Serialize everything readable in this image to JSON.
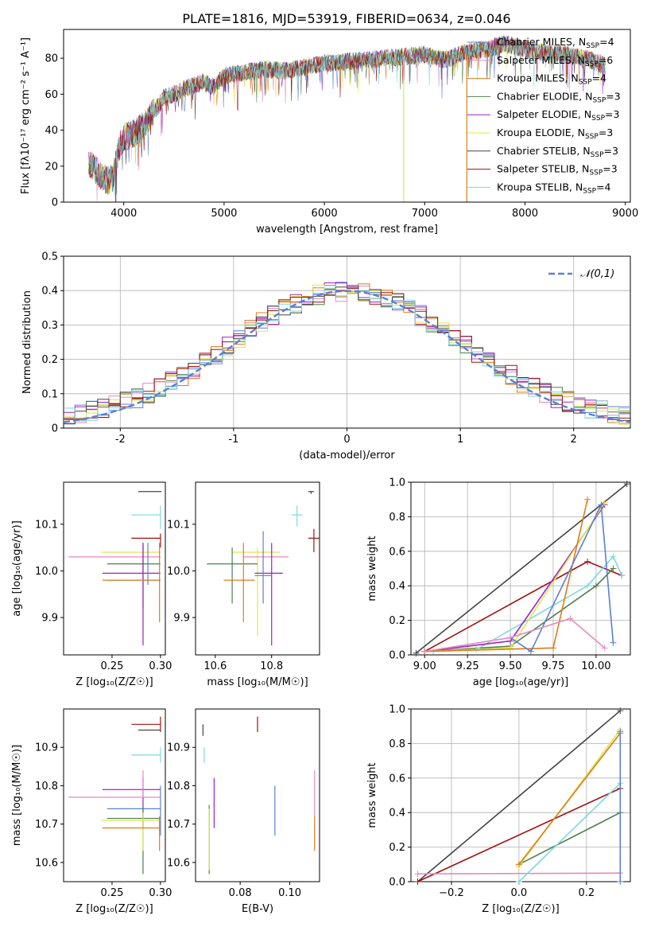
{
  "figure_title": "PLATE=1816, MJD=53919, FIBERID=0634, z=0.046",
  "series": [
    {
      "name": "Chabrier MILES, N",
      "nssp": 4,
      "color": "#5b7fd6"
    },
    {
      "name": "Salpeter MILES, N",
      "nssp": 6,
      "color": "#e28bbd"
    },
    {
      "name": "Kroupa MILES, N",
      "nssp": 4,
      "color": "#e07b1a"
    },
    {
      "name": "Chabrier ELODIE, N",
      "nssp": 3,
      "color": "#4f7f4f"
    },
    {
      "name": "Salpeter ELODIE, N",
      "nssp": 3,
      "color": "#a020c8"
    },
    {
      "name": "Kroupa ELODIE, N",
      "nssp": 3,
      "color": "#d9e84a"
    },
    {
      "name": "Chabrier STELIB, N",
      "nssp": 3,
      "color": "#444444"
    },
    {
      "name": "Salpeter STELIB, N",
      "nssp": 3,
      "color": "#a01010"
    },
    {
      "name": "Kroupa STELIB, N",
      "nssp": 4,
      "color": "#7fd8e0"
    }
  ],
  "chart_data": [
    {
      "id": "spectrum",
      "type": "line",
      "xlabel": "wavelength [Angstrom, rest frame]",
      "ylabel": "Flux [fλ10⁻¹⁷ erg cm⁻² s⁻¹ A⁻¹]",
      "xlim": [
        3400,
        9050
      ],
      "ylim": [
        0,
        96
      ],
      "xticks": [
        4000,
        5000,
        6000,
        7000,
        8000,
        9000
      ],
      "yticks": [
        0,
        20,
        40,
        60,
        80
      ],
      "grid": false,
      "legend": "right",
      "envelope": {
        "x": [
          3650,
          3700,
          3750,
          3800,
          3850,
          3900,
          3950,
          4000,
          4100,
          4200,
          4300,
          4400,
          4500,
          4600,
          4700,
          4800,
          4900,
          5000,
          5200,
          5400,
          5600,
          5800,
          6000,
          6200,
          6400,
          6600,
          6800,
          7000,
          7200,
          7400,
          7600,
          7800,
          8000,
          8200,
          8400,
          8600,
          8800
        ],
        "y": [
          22,
          19,
          16,
          13,
          12,
          14,
          30,
          36,
          38,
          43,
          50,
          58,
          60,
          63,
          65,
          67,
          64,
          70,
          72,
          74,
          73,
          75,
          77,
          78,
          79,
          80,
          81,
          82,
          79,
          83,
          85,
          88,
          85,
          83,
          82,
          80,
          76
        ]
      },
      "drops": [
        3920,
        6790,
        7420
      ]
    },
    {
      "id": "residual-hist",
      "type": "histogram",
      "xlabel": "(data-model)/error",
      "ylabel": "Normed distribution",
      "xlim": [
        -2.5,
        2.5
      ],
      "ylim": [
        0,
        0.5
      ],
      "xticks": [
        -2,
        -1,
        0,
        1,
        2
      ],
      "yticks": [
        0.0,
        0.1,
        0.2,
        0.3,
        0.4,
        0.5
      ],
      "grid": true,
      "legend": "top-right",
      "legend_label": "𝒩(0,1)",
      "bin_width": 0.1,
      "normal_curve": {
        "mean": 0,
        "sigma": 1,
        "color": "#5b7fd6"
      }
    },
    {
      "id": "age-vs-Z",
      "type": "errorbar",
      "xlabel": "Z [log₁₀(Z/Z☉)]",
      "ylabel": "age  [log₁₀(age/yr)]",
      "xlim": [
        0.2,
        0.305
      ],
      "ylim": [
        9.82,
        10.19
      ],
      "xticks": [
        0.25,
        0.3
      ],
      "xticklabels": [
        "0.25",
        "0.30"
      ],
      "yticks": [
        9.9,
        10.0,
        10.1
      ],
      "yticklabels": [
        "9.9",
        "10.0",
        "10.1"
      ],
      "points": [
        {
          "x": 0.301,
          "y": 10.17,
          "xl": 0.277,
          "xh": 0.301,
          "yl": 10.17,
          "yh": 10.17,
          "c": 6
        },
        {
          "x": 0.3,
          "y": 10.12,
          "xl": 0.27,
          "xh": 0.3,
          "yl": 10.09,
          "yh": 10.14,
          "c": 8
        },
        {
          "x": 0.3,
          "y": 10.07,
          "xl": 0.27,
          "xh": 0.3,
          "yl": 10.05,
          "yh": 10.08,
          "c": 7
        },
        {
          "x": 0.282,
          "y": 10.04,
          "xl": 0.239,
          "xh": 0.3,
          "yl": 9.86,
          "yh": 10.05,
          "c": 5
        },
        {
          "x": 0.282,
          "y": 10.03,
          "xl": 0.205,
          "xh": 0.3,
          "yl": 10.03,
          "yh": 10.03,
          "c": 1
        },
        {
          "x": 0.282,
          "y": 10.015,
          "xl": 0.245,
          "xh": 0.3,
          "yl": 9.92,
          "yh": 10.06,
          "c": 3
        },
        {
          "x": 0.282,
          "y": 9.995,
          "xl": 0.24,
          "xh": 0.3,
          "yl": 9.84,
          "yh": 10.06,
          "c": 4
        },
        {
          "x": 0.287,
          "y": 9.98,
          "xl": 0.245,
          "xh": 0.3,
          "yl": 9.97,
          "yh": 10.06,
          "c": 0
        },
        {
          "x": 0.299,
          "y": 9.98,
          "xl": 0.24,
          "xh": 0.299,
          "yl": 9.89,
          "yh": 10.06,
          "c": 2
        }
      ]
    },
    {
      "id": "age-vs-mass",
      "type": "errorbar",
      "xlabel": "mass [log₁₀(M/M☉)]",
      "ylabel": "",
      "xlim": [
        10.53,
        10.97
      ],
      "ylim": [
        9.82,
        10.19
      ],
      "xticks": [
        10.6,
        10.8
      ],
      "xticklabels": [
        "10.6",
        "10.8"
      ],
      "yticks": [
        9.9,
        10.0,
        10.1
      ],
      "yticklabels": [
        "9.9",
        "10.0",
        "10.1"
      ],
      "points": [
        {
          "x": 10.94,
          "y": 10.17,
          "xl": 10.93,
          "xh": 10.95,
          "yl": 10.165,
          "yh": 10.17,
          "c": 6
        },
        {
          "x": 10.89,
          "y": 10.12,
          "xl": 10.87,
          "xh": 10.91,
          "yl": 10.095,
          "yh": 10.14,
          "c": 8
        },
        {
          "x": 10.95,
          "y": 10.07,
          "xl": 10.93,
          "xh": 10.97,
          "yl": 10.04,
          "yh": 10.09,
          "c": 7
        },
        {
          "x": 10.75,
          "y": 10.04,
          "xl": 10.66,
          "xh": 10.83,
          "yl": 9.86,
          "yh": 10.05,
          "c": 5
        },
        {
          "x": 10.78,
          "y": 10.03,
          "xl": 10.7,
          "xh": 10.86,
          "yl": 10.03,
          "yh": 10.03,
          "c": 1
        },
        {
          "x": 10.66,
          "y": 10.015,
          "xl": 10.57,
          "xh": 10.75,
          "yl": 9.93,
          "yh": 10.05,
          "c": 3
        },
        {
          "x": 10.8,
          "y": 9.995,
          "xl": 10.74,
          "xh": 10.84,
          "yl": 9.84,
          "yh": 10.06,
          "c": 4
        },
        {
          "x": 10.77,
          "y": 9.99,
          "xl": 10.74,
          "xh": 10.8,
          "yl": 9.93,
          "yh": 10.085,
          "c": 0
        },
        {
          "x": 10.7,
          "y": 9.98,
          "xl": 10.63,
          "xh": 10.74,
          "yl": 9.89,
          "yh": 10.06,
          "c": 2
        }
      ]
    },
    {
      "id": "weight-vs-age",
      "type": "line",
      "xlabel": "age  [log₁₀(age/yr)]",
      "ylabel": "mass weight",
      "xlim": [
        8.92,
        10.2
      ],
      "ylim": [
        0,
        1.0
      ],
      "xticks": [
        9.0,
        9.25,
        9.5,
        9.75,
        10.0
      ],
      "xticklabels": [
        "9.00",
        "9.25",
        "9.50",
        "9.75",
        "10.00"
      ],
      "yticks": [
        0,
        0.2,
        0.4,
        0.6,
        0.8,
        1.0
      ],
      "yticklabels": [
        "0.0",
        "0.2",
        "0.4",
        "0.6",
        "0.8",
        "1.0"
      ],
      "grid": true,
      "lines": [
        {
          "c": 6,
          "x": [
            8.95,
            10.18
          ],
          "y": [
            0.01,
            0.99
          ]
        },
        {
          "c": 7,
          "x": [
            9.0,
            9.95,
            10.15
          ],
          "y": [
            0.02,
            0.54,
            0.46
          ]
        },
        {
          "c": 3,
          "x": [
            9.0,
            9.5,
            10.0,
            10.1
          ],
          "y": [
            0.02,
            0.05,
            0.4,
            0.5
          ]
        },
        {
          "c": 8,
          "x": [
            9.05,
            9.3,
            9.95,
            10.1,
            10.15
          ],
          "y": [
            0.02,
            0.03,
            0.4,
            0.57,
            0.46
          ]
        },
        {
          "c": 4,
          "x": [
            9.0,
            9.5,
            10.05
          ],
          "y": [
            0.02,
            0.08,
            0.87
          ]
        },
        {
          "c": 5,
          "x": [
            9.0,
            9.5,
            10.05
          ],
          "y": [
            0.02,
            0.04,
            0.88
          ]
        },
        {
          "c": 2,
          "x": [
            9.0,
            9.75,
            9.95
          ],
          "y": [
            0.02,
            0.04,
            0.9
          ]
        },
        {
          "c": 0,
          "x": [
            9.5,
            9.62,
            10.03,
            10.1
          ],
          "y": [
            0.1,
            0.02,
            0.87,
            0.07
          ]
        },
        {
          "c": 1,
          "x": [
            9.0,
            9.5,
            9.85,
            10.05
          ],
          "y": [
            0.02,
            0.1,
            0.21,
            0.04
          ]
        }
      ]
    },
    {
      "id": "mass-vs-Z",
      "type": "errorbar",
      "xlabel": "Z [log₁₀(Z/Z☉)]",
      "ylabel": "mass [log₁₀(M/M☉)]",
      "xlim": [
        0.2,
        0.305
      ],
      "ylim": [
        10.55,
        11.0
      ],
      "xticks": [
        0.25,
        0.3
      ],
      "xticklabels": [
        "0.25",
        "0.30"
      ],
      "yticks": [
        10.6,
        10.7,
        10.8,
        10.9
      ],
      "yticklabels": [
        "10.6",
        "10.7",
        "10.8",
        "10.9"
      ],
      "points": [
        {
          "x": 0.3,
          "y": 10.96,
          "xl": 0.27,
          "xh": 0.3,
          "yl": 10.94,
          "yh": 10.98,
          "c": 7
        },
        {
          "x": 0.3,
          "y": 10.945,
          "xl": 0.277,
          "xh": 0.3,
          "yl": 10.945,
          "yh": 10.945,
          "c": 6
        },
        {
          "x": 0.3,
          "y": 10.88,
          "xl": 0.27,
          "xh": 0.3,
          "yl": 10.86,
          "yh": 10.9,
          "c": 8
        },
        {
          "x": 0.282,
          "y": 10.79,
          "xl": 0.24,
          "xh": 0.3,
          "yl": 10.69,
          "yh": 10.82,
          "c": 4
        },
        {
          "x": 0.282,
          "y": 10.77,
          "xl": 0.205,
          "xh": 0.3,
          "yl": 10.77,
          "yh": 10.84,
          "c": 1
        },
        {
          "x": 0.3,
          "y": 10.74,
          "xl": 0.245,
          "xh": 0.3,
          "yl": 10.67,
          "yh": 10.8,
          "c": 0
        },
        {
          "x": 0.282,
          "y": 10.715,
          "xl": 0.245,
          "xh": 0.3,
          "yl": 10.57,
          "yh": 10.75,
          "c": 3
        },
        {
          "x": 0.282,
          "y": 10.71,
          "xl": 0.239,
          "xh": 0.3,
          "yl": 10.63,
          "yh": 10.73,
          "c": 5
        },
        {
          "x": 0.299,
          "y": 10.69,
          "xl": 0.24,
          "xh": 0.299,
          "yl": 10.63,
          "yh": 10.72,
          "c": 2
        }
      ]
    },
    {
      "id": "mass-vs-EBV",
      "type": "errorbar",
      "xlabel": "E(B-V)",
      "ylabel": "",
      "xlim": [
        0.062,
        0.112
      ],
      "ylim": [
        10.55,
        11.0
      ],
      "xticks": [
        0.08,
        0.1
      ],
      "xticklabels": [
        "0.08",
        "0.10"
      ],
      "yticks": [
        10.6,
        10.7,
        10.8,
        10.9
      ],
      "yticklabels": [
        "10.6",
        "10.7",
        "10.8",
        "10.9"
      ],
      "points": [
        {
          "x": 0.087,
          "y": 10.96,
          "xl": 0.087,
          "xh": 0.087,
          "yl": 10.94,
          "yh": 10.98,
          "c": 7
        },
        {
          "x": 0.065,
          "y": 10.945,
          "xl": 0.065,
          "xh": 0.065,
          "yl": 10.93,
          "yh": 10.96,
          "c": 6
        },
        {
          "x": 0.0655,
          "y": 10.88,
          "xl": 0.0655,
          "xh": 0.0655,
          "yl": 10.86,
          "yh": 10.9,
          "c": 8
        },
        {
          "x": 0.11,
          "y": 10.78,
          "xl": 0.11,
          "xh": 0.11,
          "yl": 10.72,
          "yh": 10.84,
          "c": 1
        },
        {
          "x": 0.0695,
          "y": 10.76,
          "xl": 0.0695,
          "xh": 0.0695,
          "yl": 10.69,
          "yh": 10.82,
          "c": 4
        },
        {
          "x": 0.094,
          "y": 10.74,
          "xl": 0.094,
          "xh": 0.094,
          "yl": 10.67,
          "yh": 10.8,
          "c": 0
        },
        {
          "x": 0.0675,
          "y": 10.7,
          "xl": 0.0675,
          "xh": 0.0675,
          "yl": 10.57,
          "yh": 10.75,
          "c": 3
        },
        {
          "x": 0.0675,
          "y": 10.69,
          "xl": 0.0675,
          "xh": 0.0675,
          "yl": 10.58,
          "yh": 10.74,
          "c": 5
        },
        {
          "x": 0.11,
          "y": 10.67,
          "xl": 0.11,
          "xh": 0.11,
          "yl": 10.63,
          "yh": 10.72,
          "c": 2
        }
      ]
    },
    {
      "id": "weight-vs-Z",
      "type": "line",
      "xlabel": "Z [log₁₀(Z/Z☉)]",
      "ylabel": "mass weight",
      "xlim": [
        -0.32,
        0.33
      ],
      "ylim": [
        0,
        1.0
      ],
      "xticks": [
        -0.2,
        0.0,
        0.2
      ],
      "xticklabels": [
        "−0.2",
        "0.0",
        "0.2"
      ],
      "yticks": [
        0,
        0.2,
        0.4,
        0.6,
        0.8,
        1.0
      ],
      "yticklabels": [
        "0.0",
        "0.2",
        "0.4",
        "0.6",
        "0.8",
        "1.0"
      ],
      "grid": true,
      "lines": [
        {
          "c": 6,
          "x": [
            -0.3,
            0.3
          ],
          "y": [
            0.0,
            0.99
          ]
        },
        {
          "c": 7,
          "x": [
            -0.3,
            0.3
          ],
          "y": [
            0.0,
            0.54
          ]
        },
        {
          "c": 1,
          "x": [
            -0.3,
            0.3
          ],
          "y": [
            0.045,
            0.05
          ]
        },
        {
          "c": 3,
          "x": [
            0.0,
            0.3
          ],
          "y": [
            0.1,
            0.4
          ]
        },
        {
          "c": 5,
          "x": [
            0.0,
            0.3
          ],
          "y": [
            0.09,
            0.88
          ]
        },
        {
          "c": 2,
          "x": [
            0.0,
            0.3
          ],
          "y": [
            0.1,
            0.86
          ]
        },
        {
          "c": 8,
          "x": [
            0.0,
            0.3
          ],
          "y": [
            0.0,
            0.57
          ]
        },
        {
          "c": 0,
          "x": [
            0.3,
            0.3
          ],
          "y": [
            0.0,
            0.87
          ]
        }
      ]
    }
  ]
}
